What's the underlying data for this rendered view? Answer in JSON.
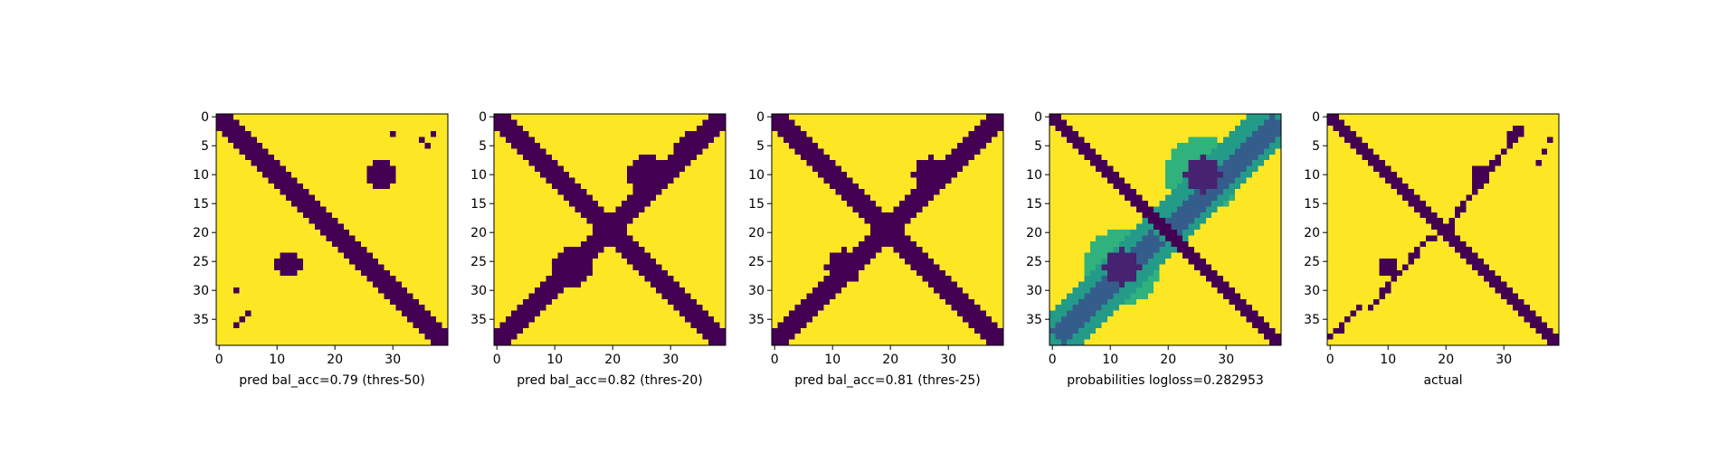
{
  "figure": {
    "background": "#ffffff"
  },
  "colors": {
    "viridis_low": "#440154",
    "viridis_high": "#fde725"
  },
  "chart_data": [
    {
      "type": "heatmap",
      "title": "",
      "xlabel": "pred bal_acc=0.79 (thres-50)",
      "ylabel": "",
      "matrix_size": 40,
      "xlim": [
        0,
        39
      ],
      "ylim": [
        39,
        0
      ],
      "xticks": [
        0,
        10,
        20,
        30
      ],
      "yticks": [
        0,
        5,
        10,
        15,
        20,
        25,
        30,
        35
      ],
      "colormap": "viridis",
      "value_range": [
        0,
        1
      ],
      "segments": [
        {
          "from": [
            0,
            0
          ],
          "to": [
            39,
            39
          ],
          "half_width": 1.6,
          "value": 0
        },
        {
          "from": [
            0,
            38
          ],
          "to": [
            39,
            1
          ],
          "half_width": 0.4,
          "value": 1
        }
      ],
      "blobs": [
        {
          "center": [
            28,
            10
          ],
          "radius": 2.8,
          "value": 0
        },
        {
          "center": [
            12,
            25.5
          ],
          "radius": 2.4,
          "value": 0
        }
      ],
      "points": [
        [
          30,
          3
        ],
        [
          35,
          4
        ],
        [
          36,
          5
        ],
        [
          37,
          3
        ],
        [
          3,
          30
        ],
        [
          5,
          34
        ],
        [
          4,
          35
        ],
        [
          3,
          36
        ]
      ]
    },
    {
      "type": "heatmap",
      "title": "",
      "xlabel": "pred bal_acc=0.82 (thres-20)",
      "ylabel": "",
      "matrix_size": 40,
      "xlim": [
        0,
        39
      ],
      "ylim": [
        39,
        0
      ],
      "xticks": [
        0,
        10,
        20,
        30
      ],
      "yticks": [
        0,
        5,
        10,
        15,
        20,
        25,
        30,
        35
      ],
      "colormap": "viridis",
      "value_range": [
        0,
        1
      ],
      "segments": [
        {
          "from": [
            0,
            0
          ],
          "to": [
            39,
            39
          ],
          "half_width": 1.7,
          "value": 0
        },
        {
          "from": [
            0,
            39
          ],
          "to": [
            39,
            0
          ],
          "half_width": 1.7,
          "value": 0
        },
        {
          "from": [
            33,
            3
          ],
          "to": [
            25,
            16
          ],
          "half_width": 0.8,
          "value": 0
        },
        {
          "from": [
            2,
            37
          ],
          "to": [
            15,
            24
          ],
          "half_width": 0.8,
          "value": 0
        }
      ],
      "blobs": [
        {
          "center": [
            26,
            10
          ],
          "radius": 3.2,
          "value": 0
        },
        {
          "center": [
            13,
            26
          ],
          "radius": 3.2,
          "value": 0
        }
      ],
      "points": []
    },
    {
      "type": "heatmap",
      "title": "",
      "xlabel": "pred bal_acc=0.81 (thres-25)",
      "ylabel": "",
      "matrix_size": 40,
      "xlim": [
        0,
        39
      ],
      "ylim": [
        39,
        0
      ],
      "xticks": [
        0,
        10,
        20,
        30
      ],
      "yticks": [
        0,
        5,
        10,
        15,
        20,
        25,
        30,
        35
      ],
      "colormap": "viridis",
      "value_range": [
        0,
        1
      ],
      "segments": [
        {
          "from": [
            0,
            0
          ],
          "to": [
            39,
            39
          ],
          "half_width": 1.7,
          "value": 0
        },
        {
          "from": [
            0,
            39
          ],
          "to": [
            39,
            0
          ],
          "half_width": 1.5,
          "value": 0
        },
        {
          "from": [
            34,
            3
          ],
          "to": [
            27,
            14
          ],
          "half_width": 0.6,
          "value": 0
        },
        {
          "from": [
            2,
            37
          ],
          "to": [
            13,
            25
          ],
          "half_width": 0.6,
          "value": 0
        }
      ],
      "blobs": [
        {
          "center": [
            27,
            10
          ],
          "radius": 3.0,
          "value": 0
        },
        {
          "center": [
            12,
            26
          ],
          "radius": 3.0,
          "value": 0
        }
      ],
      "points": []
    },
    {
      "type": "heatmap",
      "title": "",
      "xlabel": "probabilities logloss=0.282953",
      "ylabel": "",
      "matrix_size": 40,
      "xlim": [
        0,
        39
      ],
      "ylim": [
        39,
        0
      ],
      "xticks": [
        0,
        10,
        20,
        30
      ],
      "yticks": [
        0,
        5,
        10,
        15,
        20,
        25,
        30,
        35
      ],
      "colormap": "viridis",
      "value_range": [
        0,
        1
      ],
      "segments": [
        {
          "from": [
            0,
            0
          ],
          "to": [
            39,
            39
          ],
          "half_width": 1.3,
          "value": 0
        },
        {
          "from": [
            0,
            39
          ],
          "to": [
            39,
            0
          ],
          "half_width": 4.0,
          "value": 0.55
        },
        {
          "from": [
            38,
            2
          ],
          "to": [
            22,
            18
          ],
          "half_width": 2.0,
          "value": 0.3
        },
        {
          "from": [
            2,
            37
          ],
          "to": [
            17,
            22
          ],
          "half_width": 2.0,
          "value": 0.3
        }
      ],
      "blobs": [
        {
          "center": [
            26,
            10
          ],
          "radius": 3.0,
          "value": 0.1
        },
        {
          "center": [
            12,
            26
          ],
          "radius": 3.0,
          "value": 0.1
        },
        {
          "center": [
            26,
            10
          ],
          "radius": 6.5,
          "value": 0.65
        },
        {
          "center": [
            12,
            26
          ],
          "radius": 6.5,
          "value": 0.65
        }
      ],
      "points": []
    },
    {
      "type": "heatmap",
      "title": "",
      "xlabel": "actual",
      "ylabel": "",
      "matrix_size": 40,
      "xlim": [
        0,
        39
      ],
      "ylim": [
        39,
        0
      ],
      "xticks": [
        0,
        10,
        20,
        30
      ],
      "yticks": [
        0,
        5,
        10,
        15,
        20,
        25,
        30,
        35
      ],
      "colormap": "viridis",
      "value_range": [
        0,
        1
      ],
      "segments": [
        {
          "from": [
            0,
            0
          ],
          "to": [
            39,
            39
          ],
          "half_width": 1.0,
          "value": 0
        },
        {
          "from": [
            33,
            2
          ],
          "to": [
            21,
            18
          ],
          "half_width": 0.5,
          "value": 0
        },
        {
          "from": [
            17,
            21
          ],
          "to": [
            7,
            33
          ],
          "half_width": 0.5,
          "value": 0
        },
        {
          "from": [
            4,
            34
          ],
          "to": [
            0,
            38
          ],
          "half_width": 0.5,
          "value": 0
        }
      ],
      "blobs": [
        {
          "center": [
            26,
            10
          ],
          "radius": 1.8,
          "value": 0
        },
        {
          "center": [
            10,
            26
          ],
          "radius": 1.8,
          "value": 0
        },
        {
          "center": [
            32,
            3
          ],
          "radius": 1.3,
          "value": 0
        }
      ],
      "points": [
        [
          19,
          20
        ],
        [
          18,
          21
        ],
        [
          21,
          19
        ],
        [
          36,
          8
        ],
        [
          37,
          6
        ],
        [
          38,
          4
        ],
        [
          2,
          37
        ],
        [
          3,
          35
        ],
        [
          5,
          33
        ]
      ]
    }
  ]
}
